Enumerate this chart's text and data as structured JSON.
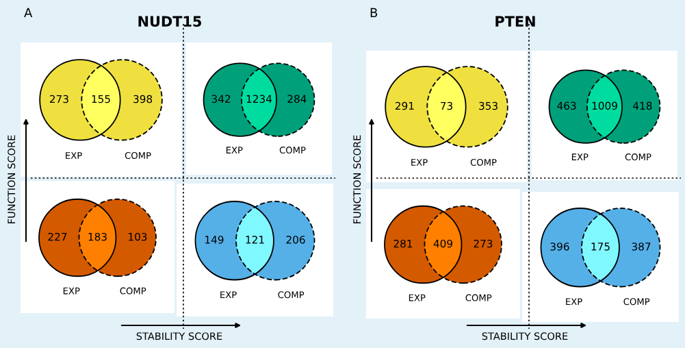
{
  "chart_data": [
    {
      "type": "other",
      "title": "NUDT15",
      "annotations": [
        "A",
        "FUNCTION SCORE",
        "STABILITY SCORE"
      ]
    },
    {
      "type": "other",
      "categories": [
        null,
        null,
        null
      ],
      "values": [
        273,
        155,
        398
      ],
      "colors": [
        "#efe040",
        "#ffff60",
        "#efe040"
      ],
      "annotations": [
        "EXP",
        "COMP"
      ],
      "data_labels": true
    },
    {
      "type": "other",
      "categories": [
        null,
        null,
        null
      ],
      "values": [
        342,
        1234,
        284
      ],
      "colors": [
        "#00a07a",
        "#00dca0",
        "#00a07a"
      ],
      "annotations": [
        "EXP",
        "COMP"
      ],
      "data_labels": true
    },
    {
      "type": "other",
      "categories": [
        null,
        null,
        null
      ],
      "values": [
        227,
        183,
        103
      ],
      "colors": [
        "#d45a00",
        "#ff8000",
        "#d45a00"
      ],
      "annotations": [
        "EXP",
        "COMP"
      ],
      "data_labels": true
    },
    {
      "type": "other",
      "categories": [
        null,
        null,
        null
      ],
      "values": [
        149,
        121,
        206
      ],
      "colors": [
        "#55b0e8",
        "#80f8ff",
        "#55b0e8"
      ],
      "annotations": [
        "EXP",
        "COMP"
      ],
      "data_labels": true
    },
    {
      "type": "other",
      "title": "PTEN",
      "annotations": [
        "B",
        "FUNCTION SCORE",
        "STABILITY SCORE"
      ]
    },
    {
      "type": "other",
      "categories": [
        null,
        null,
        null
      ],
      "values": [
        291,
        73,
        353
      ],
      "colors": [
        "#efe040",
        "#ffff60",
        "#efe040"
      ],
      "annotations": [
        "EXP",
        "COMP"
      ],
      "data_labels": true
    },
    {
      "type": "other",
      "categories": [
        null,
        null,
        null
      ],
      "values": [
        463,
        1009,
        418
      ],
      "colors": [
        "#00a07a",
        "#00dca0",
        "#00a07a"
      ],
      "annotations": [
        "EXP",
        "COMP"
      ],
      "data_labels": true
    },
    {
      "type": "other",
      "categories": [
        null,
        null,
        null
      ],
      "values": [
        281,
        409,
        273
      ],
      "colors": [
        "#d45a00",
        "#ff8000",
        "#d45a00"
      ],
      "annotations": [
        "EXP",
        "COMP"
      ],
      "data_labels": true
    },
    {
      "type": "other",
      "categories": [
        null,
        null,
        null
      ],
      "values": [
        396,
        175,
        387
      ],
      "colors": [
        "#55b0e8",
        "#80f8ff",
        "#55b0e8"
      ],
      "annotations": [
        "EXP",
        "COMP"
      ],
      "data_labels": true
    }
  ]
}
